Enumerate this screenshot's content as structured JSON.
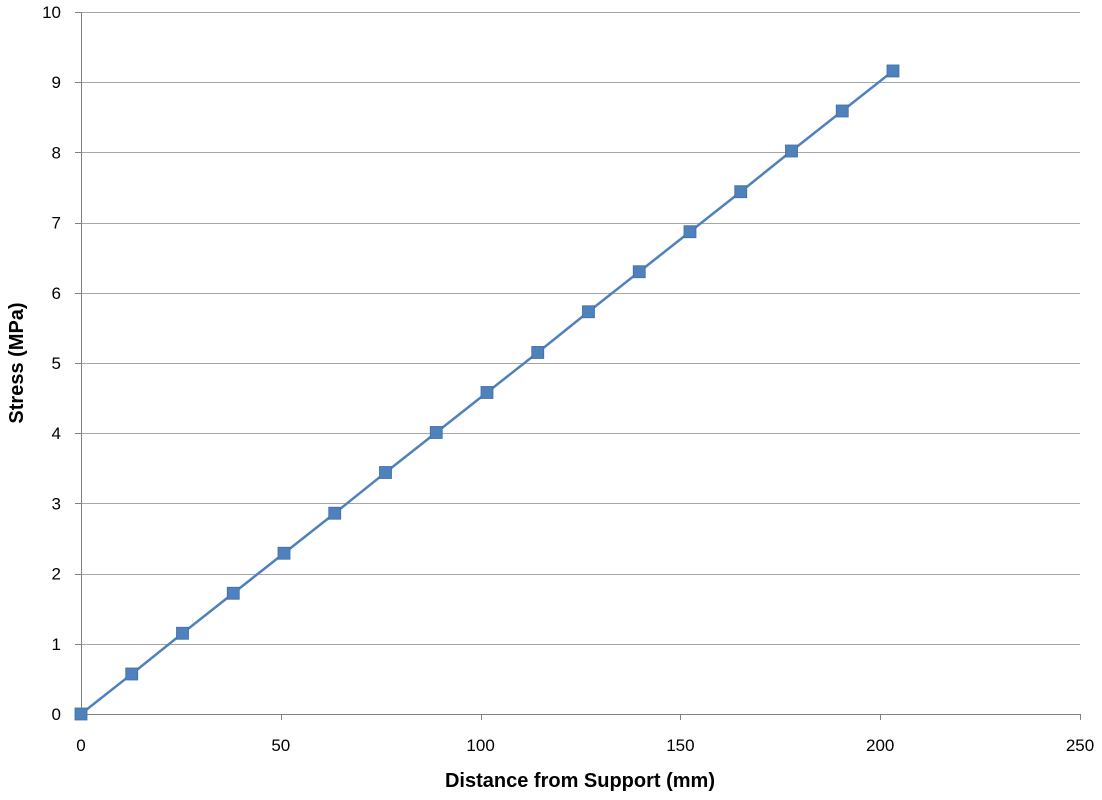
{
  "chart_data": {
    "type": "line",
    "title": "",
    "xlabel": "Distance from Support (mm)",
    "ylabel": "Stress (MPa)",
    "xlim": [
      0,
      250
    ],
    "ylim": [
      0,
      10
    ],
    "xticks": [
      0,
      50,
      100,
      150,
      200,
      250
    ],
    "yticks": [
      0,
      1,
      2,
      3,
      4,
      5,
      6,
      7,
      8,
      9,
      10
    ],
    "grid": true,
    "legend": "none",
    "series": [
      {
        "name": "Stress",
        "color": "#4f81bd",
        "marker": "square",
        "x": [
          0,
          12.7,
          25.4,
          38.1,
          50.8,
          63.5,
          76.2,
          88.9,
          101.6,
          114.3,
          127.0,
          139.7,
          152.4,
          165.1,
          177.8,
          190.5,
          203.2
        ],
        "values": [
          0,
          0.57,
          1.15,
          1.72,
          2.29,
          2.86,
          3.44,
          4.01,
          4.58,
          5.15,
          5.73,
          6.3,
          6.87,
          7.44,
          8.02,
          8.59,
          9.16
        ]
      }
    ]
  }
}
